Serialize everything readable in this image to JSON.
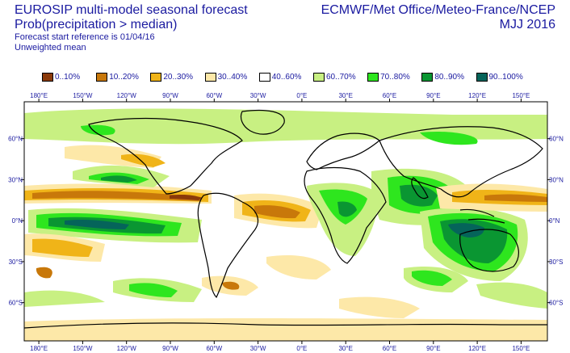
{
  "header": {
    "title": "EUROSIP multi-model seasonal forecast",
    "subtitle": "Prob(precipitation > median)",
    "start_ref": "Forecast start reference is 01/04/16",
    "weighting": "Unweighted mean",
    "centres": "ECMWF/Met Office/Meteo-France/NCEP",
    "season": "MJJ 2016"
  },
  "legend": [
    {
      "label": "0..10%",
      "color": "#8b3a0a"
    },
    {
      "label": "10..20%",
      "color": "#c8780a"
    },
    {
      "label": "20..30%",
      "color": "#f0b418"
    },
    {
      "label": "30..40%",
      "color": "#fde8a8"
    },
    {
      "label": "40..60%",
      "color": "#ffffff"
    },
    {
      "label": "60..70%",
      "color": "#c8f082"
    },
    {
      "label": "70..80%",
      "color": "#2ee61e"
    },
    {
      "label": "80..90%",
      "color": "#0a9632"
    },
    {
      "label": "90..100%",
      "color": "#05645a"
    }
  ],
  "axes": {
    "lon_top": [
      "180°E",
      "150°W",
      "120°W",
      "90°W",
      "60°W",
      "30°W",
      "0°E",
      "30°E",
      "60°E",
      "90°E",
      "120°E",
      "150°E"
    ],
    "lon_bottom": [
      "180°E",
      "150°W",
      "120°W",
      "90°W",
      "60°W",
      "30°W",
      "0°E",
      "30°E",
      "60°E",
      "90°E",
      "120°E",
      "150°E"
    ],
    "lat_left": [
      "60°N",
      "30°N",
      "0°N",
      "30°S",
      "60°S"
    ],
    "lat_right": [
      "60°N",
      "30°N",
      "0°N",
      "30°S",
      "60°S"
    ]
  },
  "map": {
    "projection": "cylindrical",
    "lon_range": [
      -190,
      168
    ],
    "lat_range": [
      -88,
      87
    ],
    "coastline_color": "#000000"
  }
}
